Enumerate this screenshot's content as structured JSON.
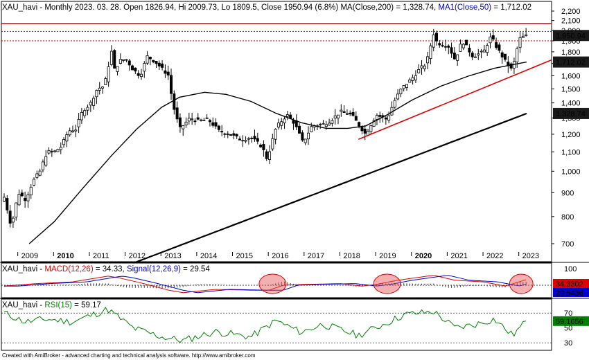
{
  "price_panel": {
    "title": "XAU_havi - Monthly 2023. 03. 28. Open 1826.94, Hi 2009.73, Lo 1809.5, Close 1950.94 (6.8%) MA(Close,200) = 1,328.74, MA1(Close,50) = 1,712.02",
    "title_parts": [
      {
        "text": "XAU_havi - Monthly 2023. 03. 28. Open 1826.94, Hi 2009.73, Lo 1809.5, Close 1950.94 (6.8%) ",
        "color": "#000000"
      },
      {
        "text": "MA(Close,200)",
        "color": "#000000"
      },
      {
        "text": " = 1,328.74, ",
        "color": "#000000"
      },
      {
        "text": "MA1(Close,50)",
        "color": "#0000cc"
      },
      {
        "text": " = 1,712.02",
        "color": "#000000"
      }
    ],
    "y_ticks": [
      "700",
      "800",
      "900",
      "1,000",
      "1,100",
      "1,200",
      "1,300",
      "1,400",
      "1,500",
      "1,600",
      "1,700",
      "1,800",
      "1,900",
      "2,000",
      "2,100",
      "2,200"
    ],
    "x_years": [
      "2009",
      "2010",
      "2011",
      "2012",
      "2013",
      "2014",
      "2015",
      "2016",
      "2017",
      "2018",
      "2019",
      "2020",
      "2021",
      "2022",
      "2023"
    ],
    "x_years_bold": [
      "2010",
      "2020"
    ],
    "badges": [
      {
        "label": "1,950.94",
        "value": 1950.94,
        "bg": "#1a1a1a",
        "fg": "#ffffff"
      },
      {
        "label": "1,712.02",
        "value": 1712.02,
        "bg": "#1a1a1a",
        "fg": "#ffffff"
      },
      {
        "label": "1,328.74",
        "value": 1328.74,
        "bg": "#1a1a1a",
        "fg": "#ffffff"
      }
    ],
    "colors": {
      "up": "#000000",
      "down": "#000000",
      "ma50": "#000000",
      "ma200": "#000000",
      "resistance": "#e00000",
      "trend": "#e00000"
    }
  },
  "macd_panel": {
    "title_parts": [
      {
        "text": "XAU_havi - ",
        "color": "#000000"
      },
      {
        "text": "MACD(12,26)",
        "color": "#e00000"
      },
      {
        "text": " = 34.33, ",
        "color": "#000000"
      },
      {
        "text": "Signal(12,26,9)",
        "color": "#0000cc"
      },
      {
        "text": " = 29.54",
        "color": "#000000"
      }
    ],
    "y_ticks": [
      "100",
      "0"
    ],
    "badges": [
      {
        "label": "34.3302",
        "value": 34.33,
        "bg": "#e00000",
        "fg": "#ffffff"
      },
      {
        "label": "29.5436",
        "value": 29.54,
        "bg": "#0000cc",
        "fg": "#ffffff"
      }
    ]
  },
  "rsi_panel": {
    "title_parts": [
      {
        "text": "XAU_havi - ",
        "color": "#000000"
      },
      {
        "text": "RSI(15)",
        "color": "#008000"
      },
      {
        "text": " = 59.17",
        "color": "#000000"
      }
    ],
    "y_ticks": [
      "70",
      "50",
      "30"
    ],
    "badges": [
      {
        "label": "59.1656",
        "value": 59.17,
        "bg": "#008000",
        "fg": "#ffffff"
      }
    ]
  },
  "footer": "Created with AmiBroker - advanced charting and technical analysis software. http://www.amibroker.com",
  "chart_data": [
    {
      "type": "candlestick",
      "title": "XAU_havi - Monthly 2023. 03. 28. Open 1826.94, Hi 2009.73, Lo 1809.5, Close 1950.94 (6.8%) MA(Close,200) = 1,328.74, MA1(Close,50) = 1,712.02",
      "x_range": [
        2008.6,
        2023.5
      ],
      "ylim": [
        640,
        2240
      ],
      "y_scale": "log",
      "grid": false,
      "close_series": {
        "name": "Close",
        "x": [
          2008.6,
          2008.8,
          2009.0,
          2009.2,
          2009.4,
          2009.6,
          2009.8,
          2010.0,
          2010.2,
          2010.4,
          2010.6,
          2010.8,
          2011.0,
          2011.2,
          2011.4,
          2011.6,
          2011.7,
          2011.8,
          2012.0,
          2012.2,
          2012.4,
          2012.6,
          2012.8,
          2013.0,
          2013.2,
          2013.3,
          2013.5,
          2013.8,
          2014.0,
          2014.3,
          2014.6,
          2014.9,
          2015.2,
          2015.5,
          2015.8,
          2015.95,
          2016.2,
          2016.5,
          2016.7,
          2016.95,
          2017.2,
          2017.5,
          2017.7,
          2018.0,
          2018.3,
          2018.6,
          2018.7,
          2019.0,
          2019.3,
          2019.5,
          2019.7,
          2020.0,
          2020.2,
          2020.4,
          2020.6,
          2020.7,
          2021.0,
          2021.2,
          2021.4,
          2021.7,
          2022.0,
          2022.2,
          2022.4,
          2022.6,
          2022.8,
          2023.0,
          2023.2
        ],
        "values": [
          880,
          760,
          900,
          870,
          950,
          1000,
          1100,
          1100,
          1130,
          1220,
          1230,
          1350,
          1390,
          1500,
          1520,
          1800,
          1620,
          1720,
          1740,
          1650,
          1600,
          1760,
          1720,
          1660,
          1600,
          1400,
          1230,
          1300,
          1280,
          1290,
          1220,
          1200,
          1170,
          1180,
          1130,
          1060,
          1240,
          1320,
          1270,
          1150,
          1250,
          1260,
          1280,
          1340,
          1320,
          1230,
          1200,
          1320,
          1290,
          1410,
          1500,
          1580,
          1650,
          1700,
          1970,
          1880,
          1860,
          1730,
          1900,
          1760,
          1800,
          1940,
          1820,
          1720,
          1640,
          1920,
          1950
        ]
      },
      "resistance_lines": [
        2070,
        1990,
        1900
      ],
      "ma200": {
        "name": "MA(Close,200)",
        "last": 1328.74
      },
      "ma50": {
        "name": "MA1(Close,50)",
        "last": 1712.02
      },
      "last_close": 1950.94
    },
    {
      "type": "line",
      "title": "XAU_havi - MACD(12,26) = 34.33, Signal(12,26,9) = 29.54",
      "ylim": [
        -60,
        200
      ],
      "series": [
        {
          "name": "MACD(12,26)",
          "last": 34.33
        },
        {
          "name": "Signal(12,26,9)",
          "last": 29.54
        }
      ]
    },
    {
      "type": "line",
      "title": "XAU_havi - RSI(15) = 59.17",
      "ylim": [
        20,
        85
      ],
      "series": [
        {
          "name": "RSI(15)",
          "last": 59.17
        }
      ]
    }
  ]
}
